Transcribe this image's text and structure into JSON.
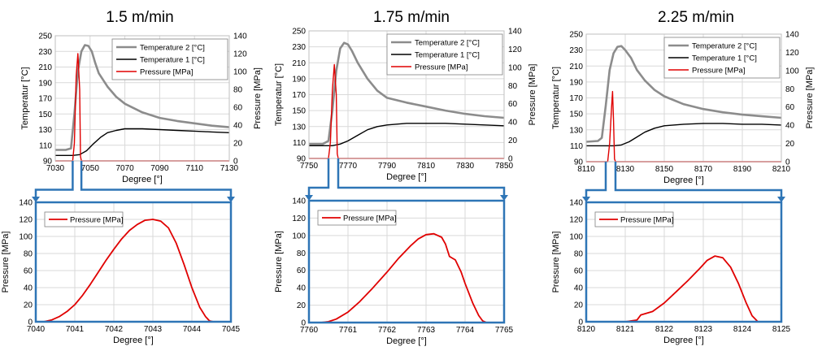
{
  "colors": {
    "temp2": "#8c8c8c",
    "temp1": "#000000",
    "pressure": "#e00000",
    "connector": "#2e75b6",
    "grid": "#d9d9d9"
  },
  "panels": [
    {
      "title": "1.5 m/min"
    },
    {
      "title": "1.75 m/min"
    },
    {
      "title": "2.25 m/min"
    }
  ],
  "chart_data": [
    {
      "type": "line",
      "panel": "1.5 m/min",
      "view": "overview",
      "xlabel": "Degree [°]",
      "ylabel": "Temperatur [°C]",
      "y2label": "Pressure [MPa]",
      "xlim": [
        7030,
        7130
      ],
      "xticks": [
        7030,
        7050,
        7070,
        7090,
        7110,
        7130
      ],
      "ylim": [
        90,
        250
      ],
      "yticks": [
        90,
        110,
        130,
        150,
        170,
        190,
        210,
        230,
        250
      ],
      "y2lim": [
        0,
        140
      ],
      "y2ticks": [
        0,
        20,
        40,
        60,
        80,
        100,
        120,
        140
      ],
      "legend": "top-right",
      "grid": true,
      "series": [
        {
          "name": "Temperature 2 [°C]",
          "color": "#8c8c8c",
          "axis": "left",
          "x": [
            7030,
            7036,
            7039,
            7041,
            7043,
            7045,
            7047,
            7049,
            7051,
            7053,
            7055,
            7060,
            7065,
            7070,
            7080,
            7090,
            7100,
            7110,
            7120,
            7130
          ],
          "y": [
            104,
            104,
            106,
            150,
            205,
            230,
            238,
            237,
            230,
            215,
            202,
            185,
            172,
            163,
            152,
            145,
            141,
            138,
            135,
            133
          ]
        },
        {
          "name": "Temperature 1 [°C]",
          "color": "#000000",
          "axis": "left",
          "x": [
            7030,
            7040,
            7044,
            7048,
            7052,
            7056,
            7060,
            7065,
            7070,
            7080,
            7090,
            7100,
            7110,
            7120,
            7130
          ],
          "y": [
            97,
            97,
            98,
            103,
            112,
            120,
            126,
            129,
            131,
            131,
            130,
            129,
            128,
            127,
            126
          ]
        },
        {
          "name": "Pressure [MPa]",
          "color": "#e00000",
          "axis": "right",
          "x": [
            7030,
            7040,
            7041,
            7042,
            7043,
            7044,
            7044.5,
            7045,
            7130
          ],
          "y": [
            0,
            0,
            20,
            95,
            120,
            80,
            5,
            0,
            0
          ]
        }
      ]
    },
    {
      "type": "line",
      "panel": "1.5 m/min",
      "view": "zoom",
      "xlabel": "Degree [°]",
      "ylabel": "Pressure [MPa]",
      "xlim": [
        7040,
        7045
      ],
      "xticks": [
        7040,
        7041,
        7042,
        7043,
        7044,
        7045
      ],
      "ylim": [
        0,
        140
      ],
      "yticks": [
        0,
        20,
        40,
        60,
        80,
        100,
        120,
        140
      ],
      "legend": "top-left",
      "grid": true,
      "series": [
        {
          "name": "Pressure [MPa]",
          "color": "#e00000",
          "x": [
            7040.0,
            7040.2,
            7040.4,
            7040.6,
            7040.8,
            7041.0,
            7041.2,
            7041.4,
            7041.6,
            7041.8,
            7042.0,
            7042.2,
            7042.4,
            7042.6,
            7042.8,
            7043.0,
            7043.2,
            7043.4,
            7043.6,
            7043.8,
            7044.0,
            7044.2,
            7044.35,
            7044.45,
            7044.55,
            7045.0
          ],
          "y": [
            0,
            0,
            2,
            6,
            12,
            20,
            31,
            44,
            58,
            72,
            85,
            97,
            107,
            114,
            119,
            120,
            118,
            110,
            92,
            67,
            40,
            17,
            6,
            1,
            0,
            0
          ]
        }
      ]
    },
    {
      "type": "line",
      "panel": "1.75 m/min",
      "view": "overview",
      "xlabel": "Degree [°]",
      "ylabel": "Temperatur [°C]",
      "y2label": "Pressure [MPa]",
      "xlim": [
        7750,
        7850
      ],
      "xticks": [
        7750,
        7770,
        7790,
        7810,
        7830,
        7850
      ],
      "ylim": [
        90,
        250
      ],
      "yticks": [
        90,
        110,
        130,
        150,
        170,
        190,
        210,
        230,
        250
      ],
      "y2lim": [
        0,
        140
      ],
      "y2ticks": [
        0,
        20,
        40,
        60,
        80,
        100,
        120,
        140
      ],
      "legend": "top-right",
      "grid": true,
      "series": [
        {
          "name": "Temperature 2 [°C]",
          "color": "#8c8c8c",
          "axis": "left",
          "x": [
            7750,
            7757,
            7760,
            7762,
            7764,
            7766,
            7768,
            7770,
            7772,
            7775,
            7780,
            7785,
            7790,
            7800,
            7810,
            7820,
            7830,
            7840,
            7850
          ],
          "y": [
            108,
            108,
            112,
            150,
            200,
            228,
            235,
            233,
            225,
            210,
            190,
            175,
            166,
            160,
            155,
            150,
            146,
            143,
            141
          ]
        },
        {
          "name": "Temperature 1 [°C]",
          "color": "#000000",
          "axis": "left",
          "x": [
            7750,
            7762,
            7766,
            7770,
            7775,
            7780,
            7785,
            7790,
            7800,
            7810,
            7820,
            7830,
            7840,
            7850
          ],
          "y": [
            106,
            106,
            108,
            112,
            119,
            126,
            130,
            132,
            134,
            134,
            134,
            133,
            132,
            131
          ]
        },
        {
          "name": "Pressure [MPa]",
          "color": "#e00000",
          "axis": "right",
          "x": [
            7750,
            7760,
            7761,
            7762,
            7763,
            7764,
            7764.5,
            7765,
            7850
          ],
          "y": [
            0,
            0,
            18,
            75,
            103,
            70,
            5,
            0,
            0
          ]
        }
      ]
    },
    {
      "type": "line",
      "panel": "1.75 m/min",
      "view": "zoom",
      "xlabel": "Degree [°]",
      "ylabel": "Pressure [MPa]",
      "xlim": [
        7760,
        7765
      ],
      "xticks": [
        7760,
        7761,
        7762,
        7763,
        7764,
        7765
      ],
      "ylim": [
        0,
        140
      ],
      "yticks": [
        0,
        20,
        40,
        60,
        80,
        100,
        120,
        140
      ],
      "legend": "top-left",
      "grid": true,
      "series": [
        {
          "name": "Pressure [MPa]",
          "color": "#e00000",
          "x": [
            7760.0,
            7760.3,
            7760.5,
            7760.7,
            7761.0,
            7761.3,
            7761.6,
            7762.0,
            7762.3,
            7762.6,
            7762.8,
            7763.0,
            7763.2,
            7763.4,
            7763.5,
            7763.6,
            7763.75,
            7763.9,
            7764.0,
            7764.2,
            7764.35,
            7764.45,
            7764.55,
            7765.0
          ],
          "y": [
            0,
            0,
            1,
            4,
            12,
            24,
            38,
            58,
            74,
            88,
            96,
            101,
            102,
            98,
            90,
            76,
            72,
            58,
            45,
            22,
            8,
            2,
            0,
            0
          ]
        }
      ]
    },
    {
      "type": "line",
      "panel": "2.25 m/min",
      "view": "overview",
      "xlabel": "Degree [°]",
      "ylabel": "Temperatur [°C]",
      "y2label": "Pressure [MPa]",
      "xlim": [
        8110,
        8210
      ],
      "xticks": [
        8110,
        8130,
        8150,
        8170,
        8190,
        8210
      ],
      "ylim": [
        90,
        250
      ],
      "yticks": [
        90,
        110,
        130,
        150,
        170,
        190,
        210,
        230,
        250
      ],
      "y2lim": [
        0,
        140
      ],
      "y2ticks": [
        0,
        20,
        40,
        60,
        80,
        100,
        120,
        140
      ],
      "legend": "top-right",
      "grid": true,
      "series": [
        {
          "name": "Temperature 2 [°C]",
          "color": "#8c8c8c",
          "axis": "left",
          "x": [
            8110,
            8116,
            8118,
            8120,
            8122,
            8124,
            8126,
            8128,
            8130,
            8133,
            8136,
            8140,
            8145,
            8150,
            8160,
            8170,
            8180,
            8190,
            8200,
            8210
          ],
          "y": [
            115,
            116,
            120,
            160,
            205,
            226,
            234,
            235,
            230,
            220,
            205,
            192,
            180,
            172,
            162,
            156,
            152,
            149,
            147,
            145
          ]
        },
        {
          "name": "Temperature 1 [°C]",
          "color": "#000000",
          "axis": "left",
          "x": [
            8110,
            8124,
            8128,
            8132,
            8136,
            8140,
            8145,
            8150,
            8160,
            8170,
            8180,
            8190,
            8200,
            8210
          ],
          "y": [
            110,
            110,
            111,
            115,
            121,
            127,
            132,
            135,
            137,
            138,
            138,
            137,
            137,
            136
          ]
        },
        {
          "name": "Pressure [MPa]",
          "color": "#e00000",
          "axis": "right",
          "x": [
            8110,
            8121,
            8122,
            8123,
            8123.5,
            8124,
            8124.5,
            8125,
            8210
          ],
          "y": [
            0,
            0,
            20,
            60,
            77,
            45,
            3,
            0,
            0
          ]
        }
      ]
    },
    {
      "type": "line",
      "panel": "2.25 m/min",
      "view": "zoom",
      "xlabel": "Degree [°]",
      "ylabel": "Pressure [MPa]",
      "xlim": [
        8120,
        8125
      ],
      "xticks": [
        8120,
        8121,
        8122,
        8123,
        8124,
        8125
      ],
      "ylim": [
        0,
        140
      ],
      "yticks": [
        0,
        20,
        40,
        60,
        80,
        100,
        120,
        140
      ],
      "legend": "top-left",
      "grid": true,
      "series": [
        {
          "name": "Pressure [MPa]",
          "color": "#e00000",
          "x": [
            8120.0,
            8121.0,
            8121.3,
            8121.4,
            8121.55,
            8121.7,
            8122.0,
            8122.3,
            8122.6,
            8122.9,
            8123.1,
            8123.3,
            8123.5,
            8123.7,
            8123.9,
            8124.1,
            8124.25,
            8124.4,
            8125.0
          ],
          "y": [
            0,
            0,
            2,
            8,
            10,
            12,
            22,
            35,
            48,
            62,
            72,
            77,
            75,
            64,
            45,
            22,
            7,
            0,
            0
          ]
        }
      ]
    }
  ]
}
